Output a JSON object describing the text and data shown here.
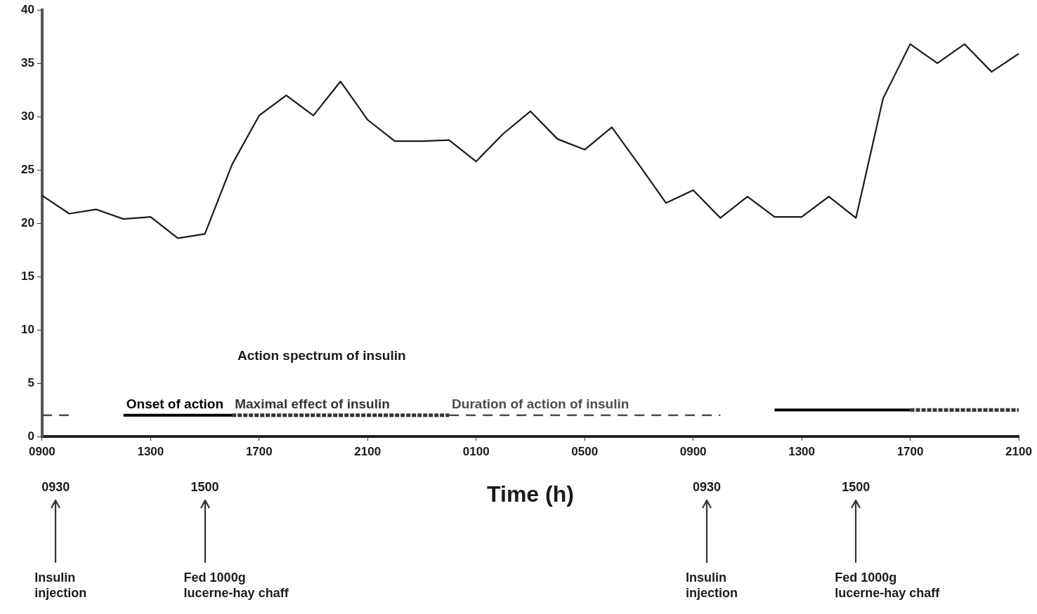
{
  "chart_data": {
    "type": "line",
    "xlabel": "Time (h)",
    "categories": [
      "0900",
      null,
      null,
      null,
      "1300",
      null,
      null,
      null,
      "1700",
      null,
      null,
      null,
      "2100",
      null,
      null,
      null,
      "0100",
      null,
      null,
      null,
      "0500",
      null,
      null,
      null,
      "0900",
      null,
      null,
      null,
      "1300",
      null,
      null,
      null,
      "1700",
      null,
      null,
      null,
      "2100"
    ],
    "ylim": [
      0,
      40
    ],
    "yticks": [
      0,
      5,
      10,
      15,
      20,
      25,
      30,
      35,
      40
    ],
    "grid": false,
    "legend": false,
    "marker": "none",
    "series": [
      {
        "color": "#1a1a1a",
        "line_style": "solid",
        "values": [
          22.6,
          20.9,
          21.3,
          20.4,
          20.6,
          18.6,
          19,
          25.5,
          30.1,
          32,
          30.1,
          33.3,
          29.7,
          27.7,
          27.7,
          27.8,
          25.8,
          28.4,
          30.5,
          27.9,
          26.9,
          29,
          25.5,
          21.9,
          23.1,
          20.5,
          22.5,
          20.6,
          20.6,
          22.5,
          20.5,
          31.7,
          36.8,
          35,
          36.8,
          34.2,
          35.9
        ]
      },
      {
        "name": "Onset of action",
        "color": "#000000",
        "line_style": "solid",
        "values": [
          null,
          null,
          null,
          2,
          2,
          2,
          2,
          2,
          null,
          null,
          null,
          null,
          null,
          null,
          null,
          null,
          null,
          null,
          null,
          null,
          null,
          null,
          null,
          null,
          null,
          null,
          null,
          2.5,
          2.5,
          2.5,
          2.5,
          2.5,
          2.5,
          null,
          null,
          null,
          null
        ]
      },
      {
        "name": "Maximal effect of insulin",
        "color": "#333333",
        "line_style": "dotted",
        "values": [
          null,
          null,
          null,
          null,
          null,
          null,
          null,
          2,
          2,
          2,
          2,
          2,
          2,
          2,
          2,
          2,
          null,
          null,
          null,
          null,
          null,
          null,
          null,
          null,
          null,
          null,
          null,
          null,
          null,
          null,
          null,
          null,
          2.5,
          2.5,
          2.5,
          2.5,
          2.5
        ]
      },
      {
        "name": "Duration of action of insulin",
        "color": "#4d4d4d",
        "line_style": "dashed",
        "values": [
          2,
          2,
          null,
          null,
          null,
          null,
          null,
          null,
          null,
          null,
          null,
          null,
          null,
          null,
          null,
          2,
          2,
          2,
          2,
          2,
          2,
          2,
          2,
          2,
          2,
          2,
          null,
          null,
          null,
          null,
          null,
          null,
          null,
          null,
          null,
          null,
          null
        ]
      }
    ],
    "annotations": [
      "Action spectrum of insulin",
      "0930",
      "Insulin\ninjection",
      "1500",
      "Fed 1000g\nlucerne-hay chaff",
      "0930",
      "Insulin\ninjection",
      "1500",
      "Fed 1000g\nlucerne-hay chaff"
    ]
  }
}
